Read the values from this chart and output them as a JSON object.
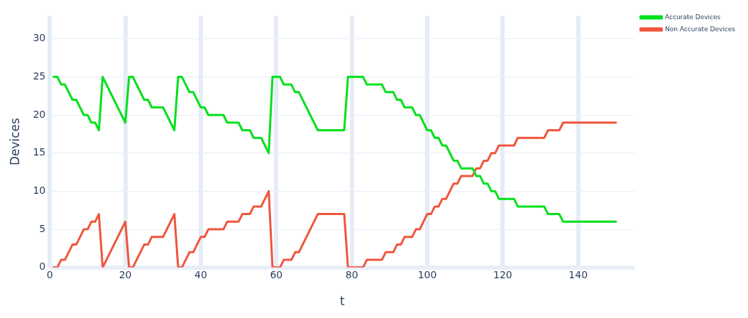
{
  "chart_data": {
    "type": "line",
    "xlabel": "t",
    "ylabel": "Devices",
    "xlim": [
      0,
      155
    ],
    "xticks": [
      0,
      20,
      40,
      60,
      80,
      100,
      120,
      140
    ],
    "ylim": [
      0,
      33
    ],
    "yticks": [
      0,
      5,
      10,
      15,
      20,
      25,
      30
    ],
    "grid": true,
    "legend": "top right",
    "marker": "none",
    "line_style": "solid",
    "series": [
      {
        "name": "Accurate Devices",
        "color": "#00e01a",
        "x": [
          1,
          2,
          3,
          4,
          6,
          7,
          9,
          10,
          11,
          12,
          13,
          14,
          20,
          21,
          22,
          25,
          26,
          27,
          30,
          33,
          34,
          35,
          37,
          38,
          40,
          41,
          42,
          46,
          47,
          50,
          51,
          53,
          54,
          56,
          58,
          59,
          61,
          62,
          64,
          65,
          66,
          71,
          78,
          79,
          83,
          84,
          88,
          89,
          91,
          92,
          93,
          94,
          96,
          97,
          98,
          100,
          101,
          102,
          103,
          104,
          105,
          107,
          108,
          109,
          112,
          113,
          114,
          115,
          116,
          117,
          118,
          119,
          123,
          124,
          131,
          132,
          135,
          136,
          150
        ],
        "values": [
          25,
          25,
          24,
          24,
          22,
          22,
          20,
          20,
          19,
          19,
          18,
          25,
          19,
          25,
          25,
          22,
          22,
          21,
          21,
          18,
          25,
          25,
          23,
          23,
          21,
          21,
          20,
          20,
          19,
          19,
          18,
          18,
          17,
          17,
          15,
          25,
          25,
          24,
          24,
          23,
          23,
          18,
          18,
          25,
          25,
          24,
          24,
          23,
          23,
          22,
          22,
          21,
          21,
          20,
          20,
          18,
          18,
          17,
          17,
          16,
          16,
          14,
          14,
          13,
          13,
          12,
          12,
          11,
          11,
          10,
          10,
          9,
          9,
          8,
          8,
          7,
          7,
          6,
          6
        ]
      },
      {
        "name": "Non Accurate Devices",
        "color": "#ef553b",
        "x": [
          1,
          2,
          3,
          4,
          6,
          7,
          9,
          10,
          11,
          12,
          13,
          14,
          20,
          21,
          22,
          25,
          26,
          27,
          30,
          33,
          34,
          35,
          37,
          38,
          40,
          41,
          42,
          46,
          47,
          50,
          51,
          53,
          54,
          56,
          58,
          59,
          61,
          62,
          64,
          65,
          66,
          71,
          78,
          79,
          83,
          84,
          88,
          89,
          91,
          92,
          93,
          94,
          96,
          97,
          98,
          100,
          101,
          102,
          103,
          104,
          105,
          107,
          108,
          109,
          112,
          113,
          114,
          115,
          116,
          117,
          118,
          119,
          123,
          124,
          131,
          132,
          135,
          136,
          150
        ],
        "values": [
          0,
          0,
          1,
          1,
          3,
          3,
          5,
          5,
          6,
          6,
          7,
          0,
          6,
          0,
          0,
          3,
          3,
          4,
          4,
          7,
          0,
          0,
          2,
          2,
          4,
          4,
          5,
          5,
          6,
          6,
          7,
          7,
          8,
          8,
          10,
          0,
          0,
          1,
          1,
          2,
          2,
          7,
          7,
          0,
          0,
          1,
          1,
          2,
          2,
          3,
          3,
          4,
          4,
          5,
          5,
          7,
          7,
          8,
          8,
          9,
          9,
          11,
          11,
          12,
          12,
          13,
          13,
          14,
          14,
          15,
          15,
          16,
          16,
          17,
          17,
          18,
          18,
          19,
          19
        ]
      }
    ]
  }
}
